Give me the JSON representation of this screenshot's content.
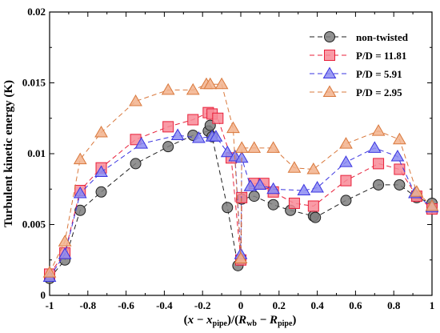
{
  "chart_data": {
    "type": "line",
    "xlabel": "(x − x_pipe)/(R_wb − R_pipe)",
    "ylabel": "Turbulent kinetic energy (K)",
    "xlim": [
      -1,
      1
    ],
    "ylim": [
      0,
      0.02
    ],
    "x_ticks": [
      -1,
      -0.8,
      -0.6,
      -0.4,
      -0.2,
      0,
      0.2,
      0.4,
      0.6,
      0.8,
      1
    ],
    "x_tick_labels": [
      "-1",
      "-0.8",
      "-0.6",
      "-0.4",
      "-0.2",
      "0",
      "0.2",
      "0.4",
      "0.6",
      "0.8",
      "1"
    ],
    "y_ticks": [
      0,
      0.005,
      0.01,
      0.015,
      0.02
    ],
    "y_tick_labels": [
      "0",
      "0.005",
      "0.01",
      "0.015",
      "0.02"
    ],
    "grid": false,
    "legend_position": "top-right",
    "series": [
      {
        "name": "non-twisted",
        "marker": "circle",
        "color": "#1f1f1f",
        "fill": "#7f7f7f",
        "points": [
          [
            -1,
            0.0012
          ],
          [
            -0.92,
            0.0025
          ],
          [
            -0.84,
            0.006
          ],
          [
            -0.73,
            0.0073
          ],
          [
            -0.55,
            0.0093
          ],
          [
            -0.38,
            0.0105
          ],
          [
            -0.25,
            0.0113
          ],
          [
            -0.17,
            0.0116
          ],
          [
            -0.16,
            0.012
          ],
          [
            -0.15,
            0.0112
          ],
          [
            -0.07,
            0.0062
          ],
          [
            -0.015,
            0.0021
          ],
          [
            0,
            0.0025
          ],
          [
            0.005,
            0.0068
          ],
          [
            0.07,
            0.007
          ],
          [
            0.17,
            0.0064
          ],
          [
            0.26,
            0.006
          ],
          [
            0.38,
            0.0056
          ],
          [
            0.39,
            0.0055
          ],
          [
            0.55,
            0.0067
          ],
          [
            0.72,
            0.0078
          ],
          [
            0.83,
            0.0078
          ],
          [
            0.92,
            0.0069
          ],
          [
            1,
            0.0065
          ]
        ]
      },
      {
        "name": "P/D = 11.81",
        "marker": "square",
        "color": "#e8203a",
        "fill": "#f88a96",
        "points": [
          [
            -1,
            0.0015
          ],
          [
            -0.92,
            0.003
          ],
          [
            -0.84,
            0.0074
          ],
          [
            -0.73,
            0.009
          ],
          [
            -0.55,
            0.011
          ],
          [
            -0.38,
            0.0119
          ],
          [
            -0.25,
            0.0124
          ],
          [
            -0.17,
            0.0129
          ],
          [
            -0.15,
            0.0128
          ],
          [
            -0.12,
            0.0125
          ],
          [
            -0.05,
            0.0097
          ],
          [
            0,
            0.0025
          ],
          [
            0.005,
            0.0069
          ],
          [
            0.07,
            0.0079
          ],
          [
            0.12,
            0.0079
          ],
          [
            0.17,
            0.0073
          ],
          [
            0.28,
            0.0065
          ],
          [
            0.38,
            0.0063
          ],
          [
            0.55,
            0.0081
          ],
          [
            0.72,
            0.0093
          ],
          [
            0.83,
            0.0089
          ],
          [
            0.92,
            0.007
          ],
          [
            1,
            0.0061
          ]
        ]
      },
      {
        "name": "P/D = 5.91",
        "marker": "triangle",
        "color": "#3a34e0",
        "fill": "#8c8cf2",
        "points": [
          [
            -1,
            0.0013
          ],
          [
            -0.92,
            0.0029
          ],
          [
            -0.84,
            0.0072
          ],
          [
            -0.73,
            0.0087
          ],
          [
            -0.52,
            0.0107
          ],
          [
            -0.33,
            0.0113
          ],
          [
            -0.22,
            0.0111
          ],
          [
            -0.15,
            0.0112
          ],
          [
            -0.13,
            0.0112
          ],
          [
            -0.07,
            0.0101
          ],
          [
            -0.03,
            0.0098
          ],
          [
            0,
            0.0029
          ],
          [
            0.005,
            0.0097
          ],
          [
            0.05,
            0.0077
          ],
          [
            0.1,
            0.0078
          ],
          [
            0.17,
            0.0075
          ],
          [
            0.33,
            0.0074
          ],
          [
            0.4,
            0.0076
          ],
          [
            0.55,
            0.0094
          ],
          [
            0.7,
            0.0104
          ],
          [
            0.82,
            0.0098
          ],
          [
            0.91,
            0.0072
          ],
          [
            1,
            0.0062
          ]
        ]
      },
      {
        "name": "P/D = 2.95",
        "marker": "triangle",
        "color": "#d9783c",
        "fill": "#f2b28c",
        "points": [
          [
            -1,
            0.0016
          ],
          [
            -0.92,
            0.0038
          ],
          [
            -0.84,
            0.0096
          ],
          [
            -0.73,
            0.0115
          ],
          [
            -0.55,
            0.0137
          ],
          [
            -0.38,
            0.0145
          ],
          [
            -0.25,
            0.0145
          ],
          [
            -0.18,
            0.0149
          ],
          [
            -0.16,
            0.0149
          ],
          [
            -0.1,
            0.0149
          ],
          [
            -0.04,
            0.0118
          ],
          [
            0,
            0.0026
          ],
          [
            0.005,
            0.0104
          ],
          [
            0.07,
            0.0104
          ],
          [
            0.17,
            0.0104
          ],
          [
            0.28,
            0.009
          ],
          [
            0.38,
            0.0089
          ],
          [
            0.55,
            0.0107
          ],
          [
            0.72,
            0.0116
          ],
          [
            0.83,
            0.011
          ],
          [
            0.92,
            0.0073
          ],
          [
            1,
            0.0063
          ]
        ]
      }
    ]
  }
}
